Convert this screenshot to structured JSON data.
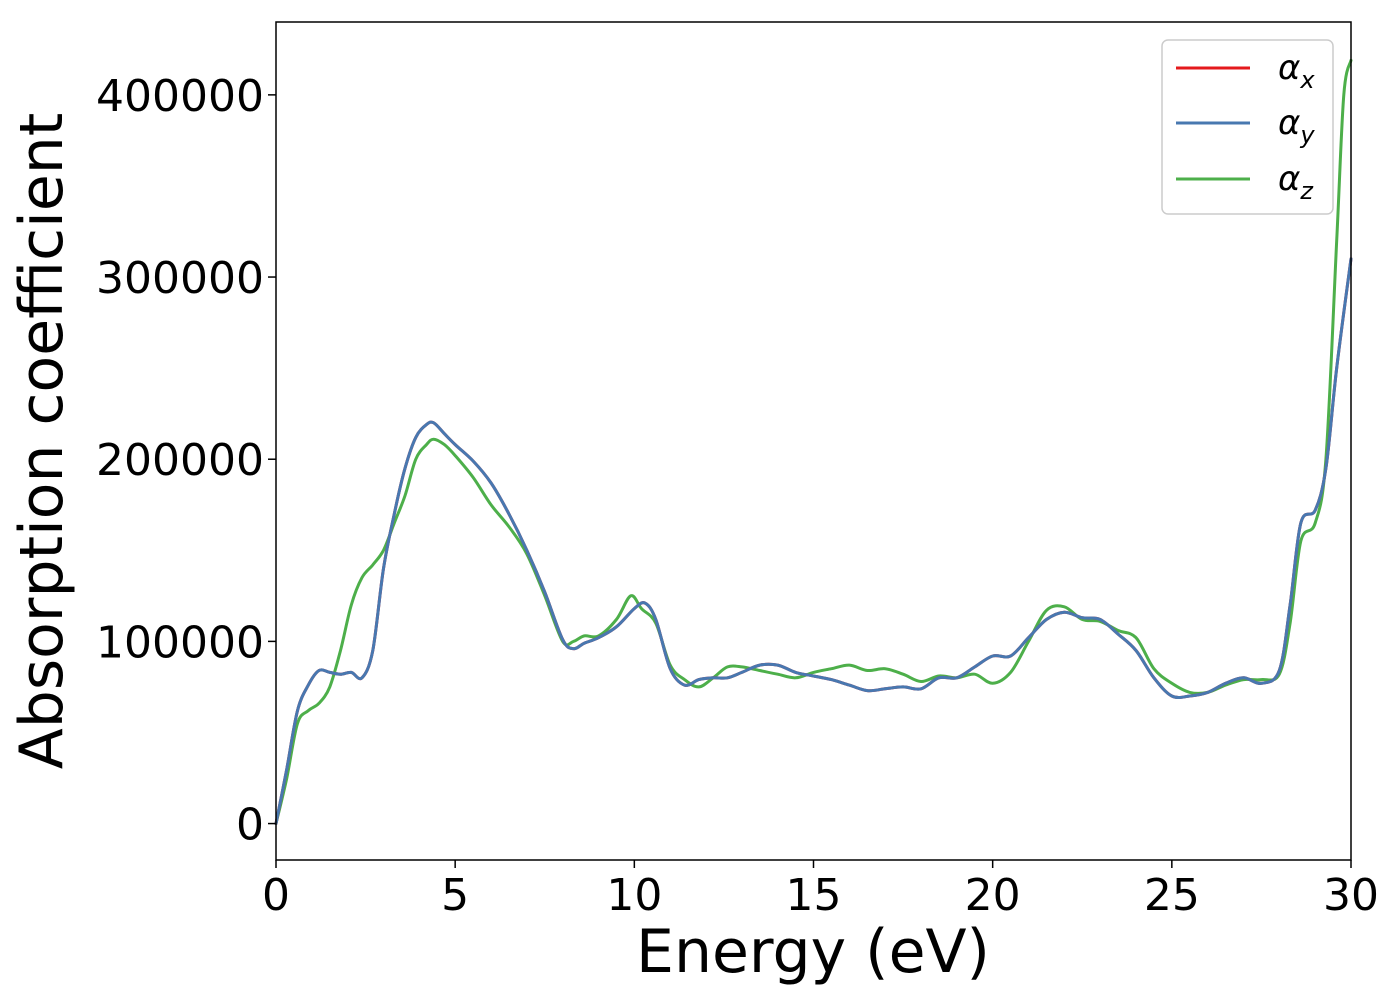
{
  "chart_data": {
    "type": "line",
    "title": "",
    "xlabel": "Energy (eV)",
    "ylabel": "Absorption coefficient",
    "xlim": [
      0,
      30
    ],
    "ylim": [
      -20000,
      440000
    ],
    "xticks": [
      "0",
      "5",
      "10",
      "15",
      "20",
      "25",
      "30"
    ],
    "xtick_values": [
      0,
      5,
      10,
      15,
      20,
      25,
      30
    ],
    "yticks": [
      "0",
      "100000",
      "200000",
      "300000",
      "400000"
    ],
    "ytick_values": [
      0,
      100000,
      200000,
      300000,
      400000
    ],
    "grid": false,
    "legend_position": "top-right",
    "series": [
      {
        "name": "α_x",
        "label_base": "α",
        "label_sub": "x",
        "color": "#e41a1c",
        "x": [
          0,
          0.3,
          0.6,
          0.9,
          1.2,
          1.5,
          1.8,
          2.1,
          2.4,
          2.7,
          3.0,
          3.3,
          3.6,
          3.9,
          4.2,
          4.4,
          4.7,
          5.0,
          5.5,
          6.0,
          6.5,
          7.0,
          7.5,
          8.0,
          8.3,
          8.6,
          9.0,
          9.5,
          10.0,
          10.3,
          10.6,
          11.0,
          11.4,
          11.8,
          12.2,
          12.6,
          13.0,
          13.5,
          14.0,
          14.5,
          15.0,
          15.5,
          16.0,
          16.5,
          17.0,
          17.5,
          18.0,
          18.5,
          19.0,
          19.5,
          20.0,
          20.5,
          21.0,
          21.5,
          22.0,
          22.5,
          23.0,
          23.5,
          24.0,
          24.5,
          25.0,
          25.5,
          26.0,
          26.5,
          27.0,
          27.5,
          28.0,
          28.3,
          28.6,
          29.0,
          29.3,
          29.6,
          30.0
        ],
        "y": [
          0,
          30000,
          62000,
          76000,
          84000,
          83000,
          82000,
          83000,
          80000,
          95000,
          140000,
          170000,
          195000,
          212000,
          219000,
          220000,
          214000,
          208000,
          199000,
          187000,
          170000,
          150000,
          127000,
          101000,
          96000,
          99000,
          102000,
          108000,
          118000,
          121000,
          112000,
          85000,
          76000,
          79000,
          80000,
          80000,
          83000,
          87000,
          87000,
          83000,
          81000,
          79000,
          76000,
          73000,
          74000,
          75000,
          74000,
          80000,
          80000,
          86000,
          92000,
          92000,
          102000,
          112000,
          116000,
          113000,
          112000,
          104000,
          95000,
          80000,
          70000,
          70000,
          72000,
          77000,
          80000,
          77000,
          84000,
          120000,
          165000,
          172000,
          195000,
          250000,
          310000
        ]
      },
      {
        "name": "α_y",
        "label_base": "α",
        "label_sub": "y",
        "color": "#4878b0",
        "x": [
          0,
          0.3,
          0.6,
          0.9,
          1.2,
          1.5,
          1.8,
          2.1,
          2.4,
          2.7,
          3.0,
          3.3,
          3.6,
          3.9,
          4.2,
          4.4,
          4.7,
          5.0,
          5.5,
          6.0,
          6.5,
          7.0,
          7.5,
          8.0,
          8.3,
          8.6,
          9.0,
          9.5,
          10.0,
          10.3,
          10.6,
          11.0,
          11.4,
          11.8,
          12.2,
          12.6,
          13.0,
          13.5,
          14.0,
          14.5,
          15.0,
          15.5,
          16.0,
          16.5,
          17.0,
          17.5,
          18.0,
          18.5,
          19.0,
          19.5,
          20.0,
          20.5,
          21.0,
          21.5,
          22.0,
          22.5,
          23.0,
          23.5,
          24.0,
          24.5,
          25.0,
          25.5,
          26.0,
          26.5,
          27.0,
          27.5,
          28.0,
          28.3,
          28.6,
          29.0,
          29.3,
          29.6,
          30.0
        ],
        "y": [
          0,
          30000,
          62000,
          76000,
          84000,
          83000,
          82000,
          83000,
          80000,
          95000,
          140000,
          170000,
          195000,
          212000,
          219000,
          220000,
          214000,
          208000,
          199000,
          187000,
          170000,
          150000,
          127000,
          101000,
          96000,
          99000,
          102000,
          108000,
          118000,
          121000,
          112000,
          85000,
          76000,
          79000,
          80000,
          80000,
          83000,
          87000,
          87000,
          83000,
          81000,
          79000,
          76000,
          73000,
          74000,
          75000,
          74000,
          80000,
          80000,
          86000,
          92000,
          92000,
          102000,
          112000,
          116000,
          113000,
          112000,
          104000,
          95000,
          80000,
          70000,
          70000,
          72000,
          77000,
          80000,
          77000,
          84000,
          120000,
          165000,
          172000,
          195000,
          250000,
          310000
        ]
      },
      {
        "name": "α_z",
        "label_base": "α",
        "label_sub": "z",
        "color": "#4daf4a",
        "x": [
          0,
          0.3,
          0.6,
          0.9,
          1.2,
          1.5,
          1.8,
          2.1,
          2.4,
          2.7,
          3.0,
          3.3,
          3.6,
          3.9,
          4.2,
          4.4,
          4.7,
          5.0,
          5.5,
          6.0,
          6.5,
          7.0,
          7.5,
          8.0,
          8.3,
          8.6,
          9.0,
          9.5,
          9.9,
          10.2,
          10.6,
          11.0,
          11.4,
          11.8,
          12.2,
          12.6,
          13.0,
          13.5,
          14.0,
          14.5,
          15.0,
          15.5,
          16.0,
          16.5,
          17.0,
          17.5,
          18.0,
          18.5,
          19.0,
          19.5,
          20.0,
          20.5,
          21.0,
          21.5,
          22.0,
          22.5,
          23.0,
          23.5,
          24.0,
          24.5,
          25.0,
          25.5,
          26.0,
          26.5,
          27.0,
          27.5,
          28.0,
          28.3,
          28.6,
          29.0,
          29.3,
          29.6,
          29.8,
          30.0
        ],
        "y": [
          0,
          25000,
          55000,
          62000,
          66000,
          75000,
          95000,
          120000,
          135000,
          142000,
          150000,
          165000,
          180000,
          200000,
          208000,
          211000,
          208000,
          202000,
          190000,
          175000,
          163000,
          148000,
          125000,
          100000,
          100000,
          103000,
          103000,
          112000,
          125000,
          118000,
          110000,
          87000,
          79000,
          75000,
          80000,
          86000,
          86000,
          84000,
          82000,
          80000,
          83000,
          85000,
          87000,
          84000,
          85000,
          82000,
          78000,
          81000,
          80000,
          82000,
          77000,
          83000,
          100000,
          117000,
          119000,
          112000,
          111000,
          106000,
          102000,
          85000,
          77000,
          72000,
          72000,
          76000,
          79000,
          79000,
          82000,
          110000,
          155000,
          165000,
          200000,
          320000,
          400000,
          419000
        ]
      }
    ]
  }
}
